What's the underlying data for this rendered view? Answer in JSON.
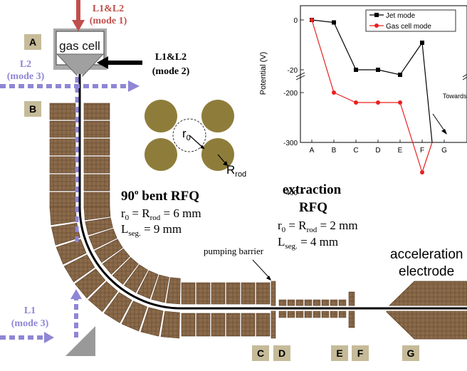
{
  "labels": {
    "gas_cell": "gas cell",
    "beam_mode1": [
      "L1&L2",
      "(mode 1)"
    ],
    "beam_mode2": [
      "L1&L2",
      "(mode 2)"
    ],
    "beam_l2_mode3": [
      "L2",
      "(mode 3)"
    ],
    "beam_l1_mode3": [
      "L1",
      "(mode 3)"
    ],
    "rod_r0": "r",
    "rod_r0_sub": "0",
    "rod_R": "R",
    "rod_R_sub": "rod",
    "bent_rfq_title": "90",
    "bent_rfq_title_sup": "o",
    "bent_rfq_title_rest": " bent RFQ",
    "bent_rfq_r0": "r",
    "bent_rfq_r0_sub": "0",
    "bent_rfq_eq": " = R",
    "bent_rfq_rod_sub": "rod",
    "bent_rfq_r_val": " = 6 mm",
    "bent_rfq_L": "L",
    "bent_rfq_L_sub": "seg.",
    "bent_rfq_L_val": " = 9 mm",
    "ext_rfq_title1": "extraction",
    "ext_rfq_title2": "RFQ",
    "ext_rfq_r0": "r",
    "ext_rfq_r0_sub": "0",
    "ext_rfq_eq": " = R",
    "ext_rfq_rod_sub": "rod",
    "ext_rfq_r_val": " = 2 mm",
    "ext_rfq_L": "L",
    "ext_rfq_L_sub": "seg.",
    "ext_rfq_L_val": " = 4 mm",
    "pumping_barrier": "pumping barrier",
    "accel1": "acceleration",
    "accel2": "electrode",
    "point_labels": [
      "A",
      "B",
      "C",
      "D",
      "E",
      "F",
      "G"
    ]
  },
  "colors": {
    "copper": "#8a6a4a",
    "copper_dark": "#5a3e25",
    "rod_fill": "#8e7d3a",
    "label_box": "#c6bb99",
    "mode1": "#c0504d",
    "mode3": "#8f86d6",
    "jet": "#000000",
    "gascell_series": "#e8201f"
  },
  "chart_data": {
    "type": "line",
    "categories": [
      "A",
      "B",
      "C",
      "D",
      "E",
      "F",
      "G"
    ],
    "ylabel": "Potential (V)",
    "yticks": [
      0,
      -20,
      -200,
      -300,
      -400
    ],
    "series": [
      {
        "name": "Jet mode",
        "values": [
          0,
          -1,
          -20,
          -20,
          -22,
          -100,
          null
        ]
      },
      {
        "name": "Gas cell mode",
        "values": [
          0,
          -200,
          -220,
          -220,
          -220,
          -360,
          null
        ]
      }
    ],
    "annotation": "Towards -40 kV",
    "legend": "top-right"
  }
}
